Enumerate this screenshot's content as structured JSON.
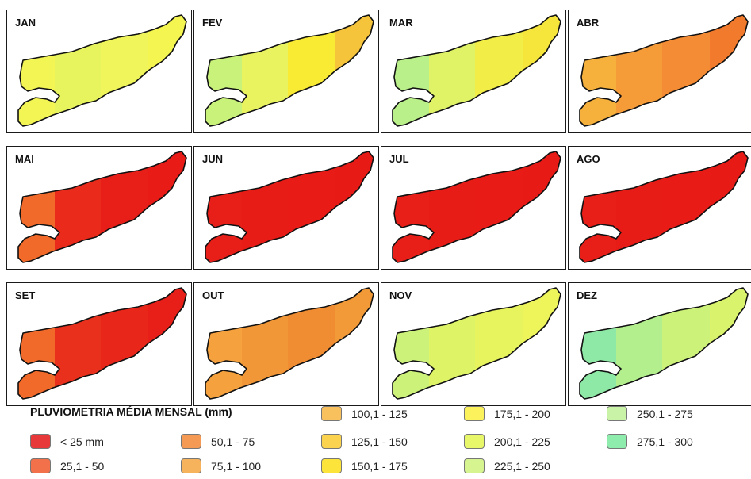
{
  "maps": [
    {
      "month": "JAN",
      "zones": [
        "#f2f553",
        "#e8f45e",
        "#eff55a",
        "#f4f550"
      ]
    },
    {
      "month": "FEV",
      "zones": [
        "#c9f27a",
        "#e9f35f",
        "#f9ea33",
        "#f5c43a"
      ]
    },
    {
      "month": "MAR",
      "zones": [
        "#b9f08a",
        "#e0f266",
        "#f2ee47",
        "#f6e63b"
      ]
    },
    {
      "month": "ABR",
      "zones": [
        "#f6b13c",
        "#f59c39",
        "#f48b35",
        "#f17a2d"
      ]
    },
    {
      "month": "MAI",
      "zones": [
        "#f26a2a",
        "#ea2b1b",
        "#e81e18",
        "#e81b17"
      ]
    },
    {
      "month": "JUN",
      "zones": [
        "#e81e18",
        "#e81c17",
        "#e81b17",
        "#e81a16"
      ]
    },
    {
      "month": "JUL",
      "zones": [
        "#e81e18",
        "#e81c17",
        "#e81b17",
        "#e81a16"
      ]
    },
    {
      "month": "AGO",
      "zones": [
        "#e81e18",
        "#e81c17",
        "#e81b17",
        "#e81a16"
      ]
    },
    {
      "month": "SET",
      "zones": [
        "#f26a2a",
        "#e8301c",
        "#e8261a",
        "#e81e18"
      ]
    },
    {
      "month": "OUT",
      "zones": [
        "#f5a23e",
        "#f29737",
        "#f08d33",
        "#f29a38"
      ]
    },
    {
      "month": "NOV",
      "zones": [
        "#cdf279",
        "#dff366",
        "#e8f45e",
        "#eef55a"
      ]
    },
    {
      "month": "DEZ",
      "zones": [
        "#8fe9a6",
        "#b4ef8e",
        "#cdf27a",
        "#d9f36c"
      ]
    }
  ],
  "legend": {
    "title": "PLUVIOMETRIA MÉDIA MENSAL (mm)",
    "items": [
      {
        "label": "< 25 mm",
        "color": "#e8393a"
      },
      {
        "label": "25,1 - 50",
        "color": "#f2714a"
      },
      {
        "label": "50,1 - 75",
        "color": "#f49a55"
      },
      {
        "label": "75,1 - 100",
        "color": "#f7b25c"
      },
      {
        "label": "100,1 - 125",
        "color": "#f9c05e"
      },
      {
        "label": "125,1 - 150",
        "color": "#fbd34f"
      },
      {
        "label": "150,1 - 175",
        "color": "#fce43a"
      },
      {
        "label": "175,1 - 200",
        "color": "#fbf25c"
      },
      {
        "label": "200,1 - 225",
        "color": "#e8f66a"
      },
      {
        "label": "225,1 - 250",
        "color": "#d6f590"
      },
      {
        "label": "250,1 - 275",
        "color": "#c9f3a6"
      },
      {
        "label": "275,1 - 300",
        "color": "#8eecad"
      }
    ]
  }
}
